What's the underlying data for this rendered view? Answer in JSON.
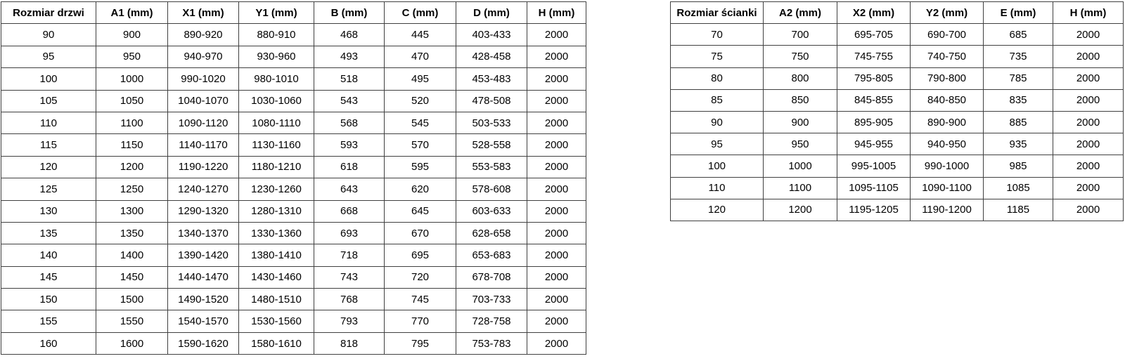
{
  "page": {
    "background_color": "#ffffff",
    "border_color": "#404040",
    "text_color": "#000000"
  },
  "door_table": {
    "headers": [
      "Rozmiar drzwi",
      "A1 (mm)",
      "X1 (mm)",
      "Y1 (mm)",
      "B (mm)",
      "C (mm)",
      "D (mm)",
      "H (mm)"
    ],
    "rows": [
      [
        "90",
        "900",
        "890-920",
        "880-910",
        "468",
        "445",
        "403-433",
        "2000"
      ],
      [
        "95",
        "950",
        "940-970",
        "930-960",
        "493",
        "470",
        "428-458",
        "2000"
      ],
      [
        "100",
        "1000",
        "990-1020",
        "980-1010",
        "518",
        "495",
        "453-483",
        "2000"
      ],
      [
        "105",
        "1050",
        "1040-1070",
        "1030-1060",
        "543",
        "520",
        "478-508",
        "2000"
      ],
      [
        "110",
        "1100",
        "1090-1120",
        "1080-1110",
        "568",
        "545",
        "503-533",
        "2000"
      ],
      [
        "115",
        "1150",
        "1140-1170",
        "1130-1160",
        "593",
        "570",
        "528-558",
        "2000"
      ],
      [
        "120",
        "1200",
        "1190-1220",
        "1180-1210",
        "618",
        "595",
        "553-583",
        "2000"
      ],
      [
        "125",
        "1250",
        "1240-1270",
        "1230-1260",
        "643",
        "620",
        "578-608",
        "2000"
      ],
      [
        "130",
        "1300",
        "1290-1320",
        "1280-1310",
        "668",
        "645",
        "603-633",
        "2000"
      ],
      [
        "135",
        "1350",
        "1340-1370",
        "1330-1360",
        "693",
        "670",
        "628-658",
        "2000"
      ],
      [
        "140",
        "1400",
        "1390-1420",
        "1380-1410",
        "718",
        "695",
        "653-683",
        "2000"
      ],
      [
        "145",
        "1450",
        "1440-1470",
        "1430-1460",
        "743",
        "720",
        "678-708",
        "2000"
      ],
      [
        "150",
        "1500",
        "1490-1520",
        "1480-1510",
        "768",
        "745",
        "703-733",
        "2000"
      ],
      [
        "155",
        "1550",
        "1540-1570",
        "1530-1560",
        "793",
        "770",
        "728-758",
        "2000"
      ],
      [
        "160",
        "1600",
        "1590-1620",
        "1580-1610",
        "818",
        "795",
        "753-783",
        "2000"
      ]
    ]
  },
  "wall_table": {
    "headers": [
      "Rozmiar ścianki",
      "A2 (mm)",
      "X2 (mm)",
      "Y2 (mm)",
      "E (mm)",
      "H (mm)"
    ],
    "rows": [
      [
        "70",
        "700",
        "695-705",
        "690-700",
        "685",
        "2000"
      ],
      [
        "75",
        "750",
        "745-755",
        "740-750",
        "735",
        "2000"
      ],
      [
        "80",
        "800",
        "795-805",
        "790-800",
        "785",
        "2000"
      ],
      [
        "85",
        "850",
        "845-855",
        "840-850",
        "835",
        "2000"
      ],
      [
        "90",
        "900",
        "895-905",
        "890-900",
        "885",
        "2000"
      ],
      [
        "95",
        "950",
        "945-955",
        "940-950",
        "935",
        "2000"
      ],
      [
        "100",
        "1000",
        "995-1005",
        "990-1000",
        "985",
        "2000"
      ],
      [
        "110",
        "1100",
        "1095-1105",
        "1090-1100",
        "1085",
        "2000"
      ],
      [
        "120",
        "1200",
        "1195-1205",
        "1190-1200",
        "1185",
        "2000"
      ]
    ]
  }
}
